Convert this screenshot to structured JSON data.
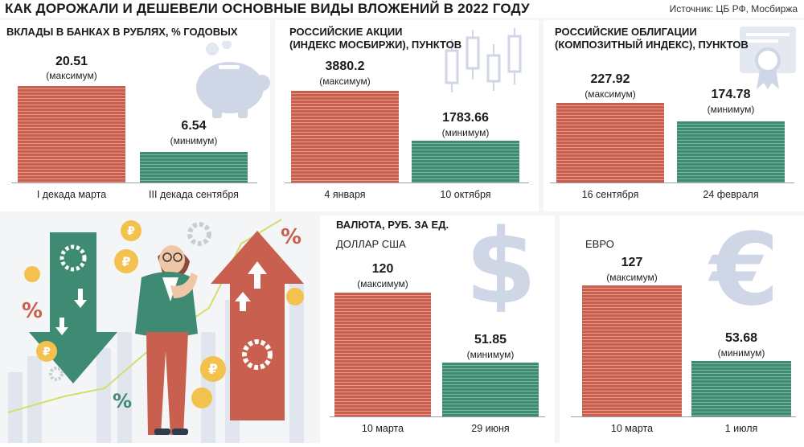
{
  "title": "КАК ДОРОЖАЛИ И ДЕШЕВЕЛИ ОСНОВНЫЕ ВИДЫ ВЛОЖЕНИЙ В 2022 ГОДУ",
  "source": "Источник: ЦБ РФ, Мосбиржа",
  "colors": {
    "max": "#c9604f",
    "min": "#3f8a72"
  },
  "chart_data": [
    {
      "type": "bar",
      "title": "ВКЛАДЫ В БАНКАХ В РУБЛЯХ, % ГОДОВЫХ",
      "categories": [
        "I декада марта",
        "III декада сентября"
      ],
      "values": [
        20.51,
        6.54
      ],
      "value_labels": [
        "20.51",
        "6.54"
      ],
      "notes": [
        "(максимум)",
        "(минимум)"
      ]
    },
    {
      "type": "bar",
      "title_lines": [
        "РОССИЙСКИЕ АКЦИИ",
        "(ИНДЕКС МОСБИРЖИ), ПУНКТОВ"
      ],
      "categories": [
        "4 января",
        "10 октября"
      ],
      "values": [
        3880.2,
        1783.66
      ],
      "value_labels": [
        "3880.2",
        "1783.66"
      ],
      "notes": [
        "(максимум)",
        "(минимум)"
      ]
    },
    {
      "type": "bar",
      "title_lines": [
        "РОССИЙСКИЕ ОБЛИГАЦИИ",
        "(КОМПОЗИТНЫЙ ИНДЕКС), ПУНКТОВ"
      ],
      "categories": [
        "16 сентября",
        "24 февраля"
      ],
      "values": [
        227.92,
        174.78
      ],
      "value_labels": [
        "227.92",
        "174.78"
      ],
      "notes": [
        "(максимум)",
        "(минимум)"
      ]
    },
    {
      "type": "bar",
      "title": "ВАЛЮТА, РУБ. ЗА ЕД.",
      "subtitle": "ДОЛЛАР США",
      "categories": [
        "10 марта",
        "29 июня"
      ],
      "values": [
        120,
        51.85
      ],
      "value_labels": [
        "120",
        "51.85"
      ],
      "notes": [
        "(максимум)",
        "(минимум)"
      ]
    },
    {
      "type": "bar",
      "subtitle": "ЕВРО",
      "categories": [
        "10 марта",
        "1 июля"
      ],
      "values": [
        127,
        53.68
      ],
      "value_labels": [
        "127",
        "53.68"
      ],
      "notes": [
        "(максимум)",
        "(минимум)"
      ]
    }
  ],
  "illustration": {
    "pct_symbol": "%",
    "rub_symbol": "₽",
    "dollar_symbol": "$",
    "euro_symbol": "€",
    "icons": [
      "piggy-bank-icon",
      "candlestick-icon",
      "certificate-icon",
      "dollar-icon",
      "euro-icon",
      "arrow-down-icon",
      "arrow-up-icon",
      "ruble-coin-icon",
      "gear-icon",
      "person-icon"
    ]
  }
}
